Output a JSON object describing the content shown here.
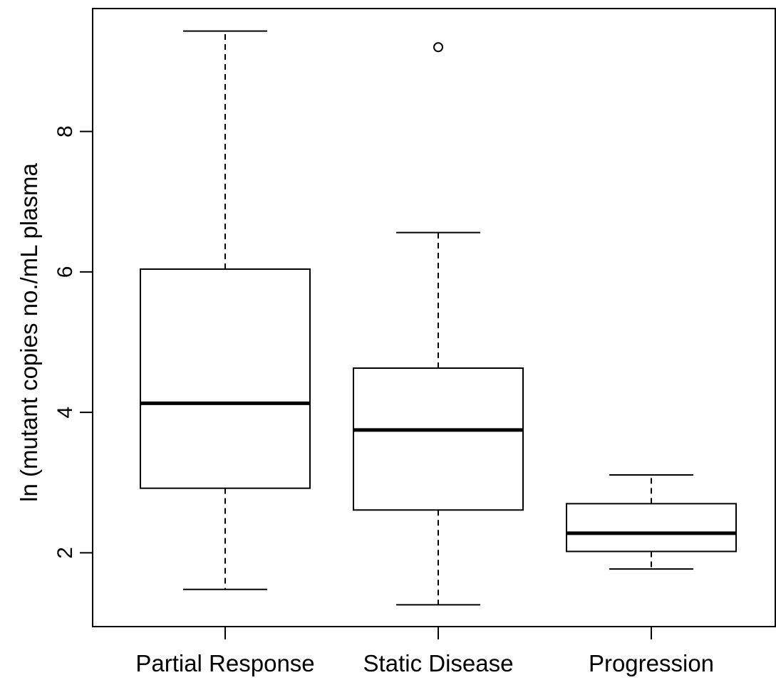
{
  "chart_data": {
    "type": "boxplot",
    "title": "",
    "xlabel": "",
    "ylabel": "ln (mutant copies no./mL plasma",
    "ylim": [
      0.95,
      9.75
    ],
    "yticks": [
      2,
      4,
      6,
      8
    ],
    "ytick_labels": [
      "2",
      "4",
      "6",
      "8"
    ],
    "categories": [
      "Partial Response",
      "Static Disease",
      "Progression"
    ],
    "boxes": [
      {
        "category": "Partial Response",
        "whisker_low": 1.48,
        "q1": 2.92,
        "median": 4.13,
        "q3": 6.04,
        "whisker_high": 9.43,
        "outliers": []
      },
      {
        "category": "Static Disease",
        "whisker_low": 1.26,
        "q1": 2.61,
        "median": 3.75,
        "q3": 4.63,
        "whisker_high": 6.56,
        "outliers": [
          9.2
        ]
      },
      {
        "category": "Progression",
        "whisker_low": 1.77,
        "q1": 2.02,
        "median": 2.28,
        "q3": 2.7,
        "whisker_high": 3.11,
        "outliers": []
      }
    ],
    "grid": false,
    "legend": "none",
    "colors": {
      "stroke": "#000000",
      "box_fill": "#ffffff",
      "background": "#ffffff"
    }
  }
}
